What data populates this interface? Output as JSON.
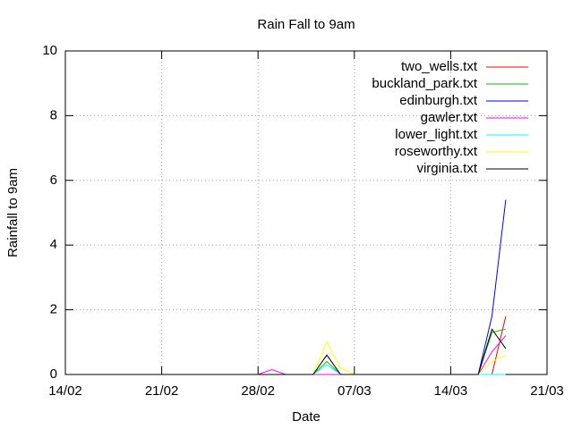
{
  "chart_data": {
    "type": "line",
    "title": "Rain Fall to 9am",
    "xlabel": "Date",
    "ylabel": "Rainfall to 9am",
    "x": [
      "28/02",
      "01/03",
      "02/03",
      "03/03",
      "04/03",
      "05/03",
      "06/03",
      "07/03",
      "08/03",
      "09/03",
      "10/03",
      "11/03",
      "12/03",
      "13/03",
      "14/03",
      "15/03",
      "16/03",
      "17/03",
      "18/03"
    ],
    "series": [
      {
        "name": "two_wells.txt",
        "color": "#ff0000",
        "values": [
          0,
          0,
          0,
          0,
          0,
          0,
          0,
          0,
          0,
          0,
          0,
          0,
          0,
          0,
          0,
          0,
          0,
          0,
          1.8
        ]
      },
      {
        "name": "buckland_park.txt",
        "color": "#00c000",
        "values": [
          0,
          0,
          0,
          0,
          0,
          0.4,
          0,
          0,
          0,
          0,
          0,
          0,
          0,
          0,
          0,
          0,
          0,
          1.3,
          1.4
        ]
      },
      {
        "name": "edinburgh.txt",
        "color": "#0000ff",
        "values": [
          0,
          0,
          0,
          0,
          0,
          0,
          0,
          0,
          0,
          0,
          0,
          0,
          0,
          0,
          0,
          0,
          0,
          1.8,
          5.4
        ]
      },
      {
        "name": "gawler.txt",
        "color": "#ff00ff",
        "values": [
          0,
          0.15,
          0,
          0,
          0,
          0,
          0,
          0,
          0,
          0,
          0,
          0,
          0,
          0,
          0,
          0,
          0,
          0.7,
          1.2
        ]
      },
      {
        "name": "lower_light.txt",
        "color": "#00ffff",
        "values": [
          0,
          0,
          0,
          0,
          0,
          0.3,
          0,
          0,
          0,
          0,
          0,
          0,
          0,
          0,
          0,
          0,
          0,
          0,
          0
        ]
      },
      {
        "name": "roseworthy.txt",
        "color": "#ffff00",
        "values": [
          0,
          0,
          0,
          0,
          0,
          1.0,
          0.2,
          0,
          0,
          0,
          0,
          0,
          0,
          0,
          0,
          0,
          0,
          0.4,
          0.6
        ]
      },
      {
        "name": "virginia.txt",
        "color": "#000000",
        "values": [
          0,
          0,
          0,
          0,
          0,
          0.6,
          0,
          0,
          0,
          0,
          0,
          0,
          0,
          0,
          0,
          0,
          0,
          1.4,
          0.8
        ]
      }
    ],
    "xlim": [
      "14/02",
      "21/03"
    ],
    "xticks": [
      "14/02",
      "21/02",
      "28/02",
      "07/03",
      "14/03",
      "21/03"
    ],
    "ylim": [
      0,
      10
    ],
    "yticks": [
      0,
      2,
      4,
      6,
      8,
      10
    ],
    "grid": true,
    "legend": "top-right"
  }
}
